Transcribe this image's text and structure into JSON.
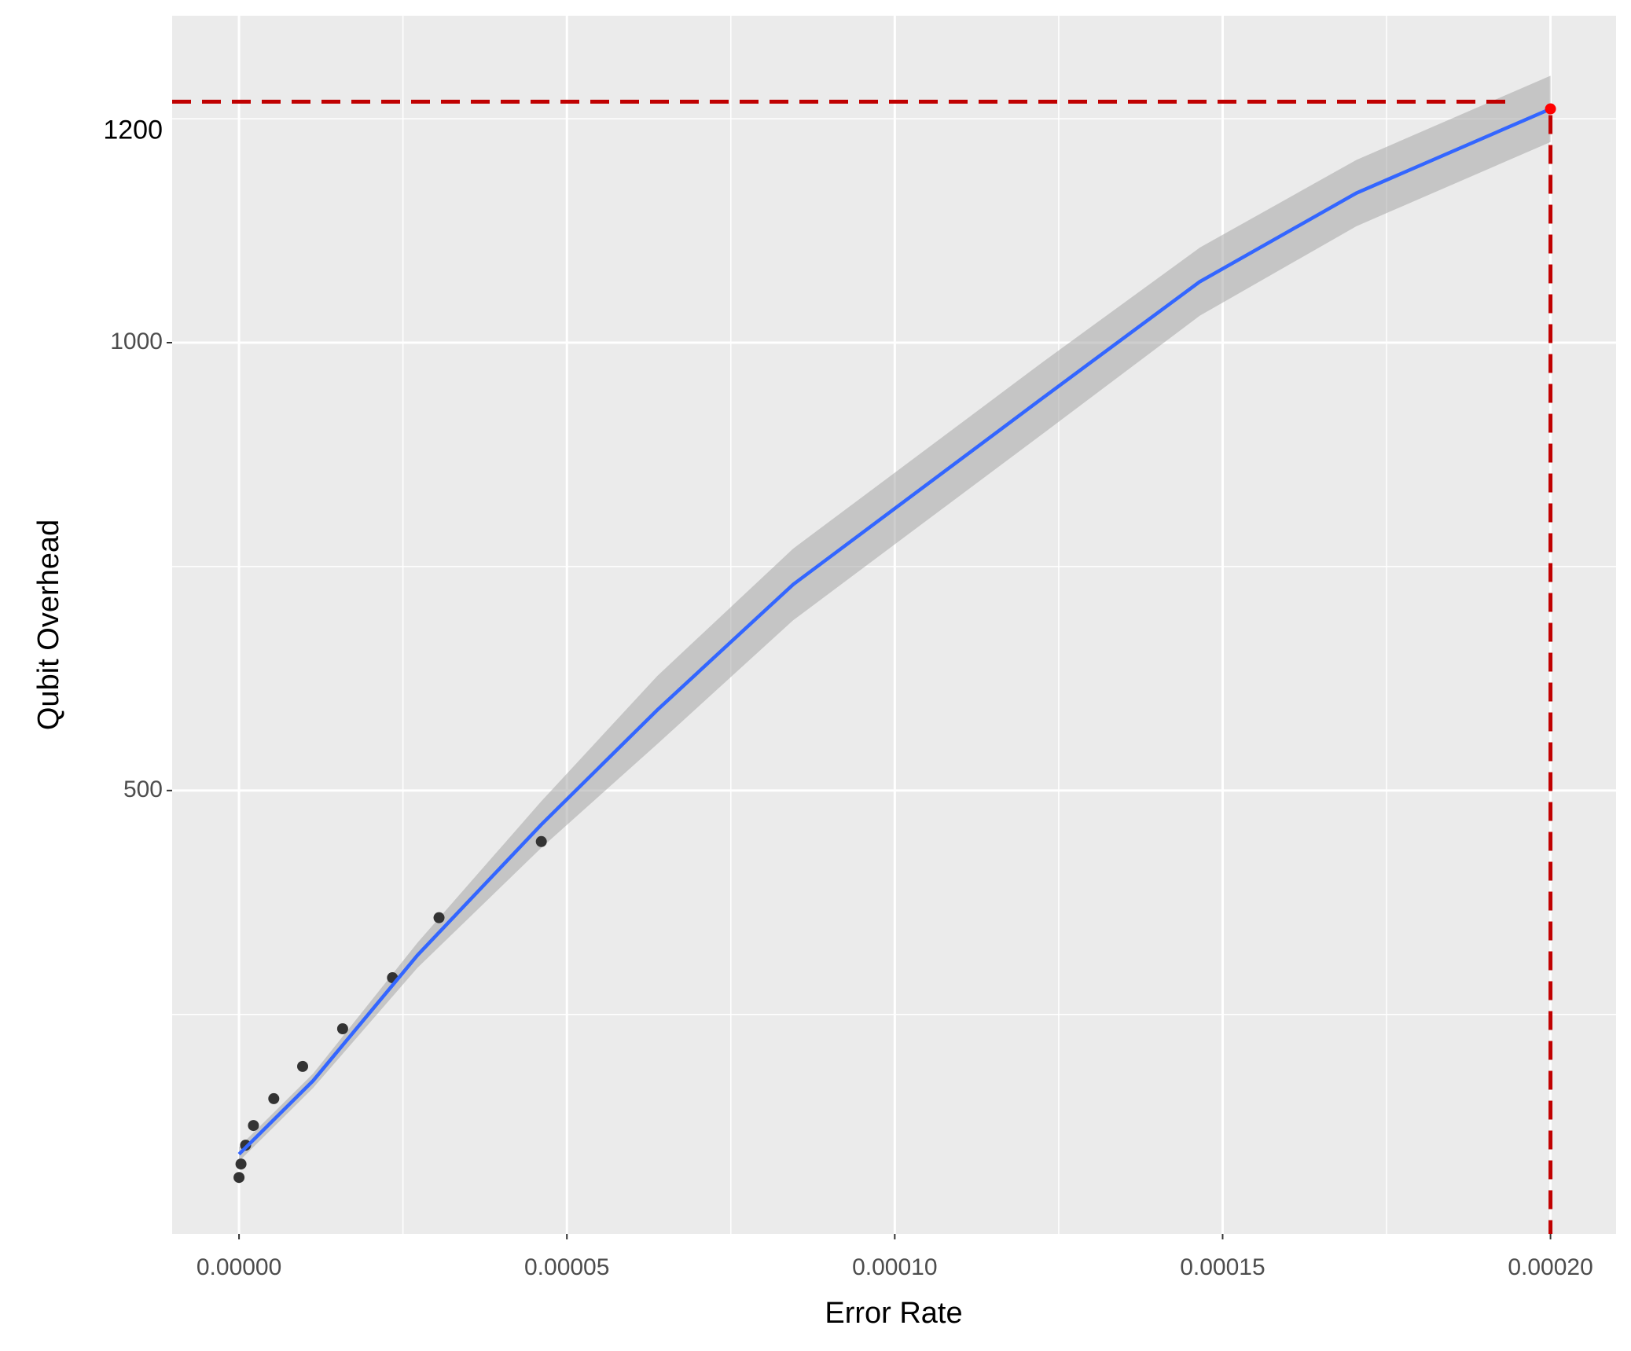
{
  "chart_data": {
    "type": "scatter_fit",
    "x_label": "Error Rate",
    "y_label": "Qubit Overhead",
    "annotation": "1200",
    "xlim": [
      -1.02e-05,
      0.00021
    ],
    "ylim": [
      5,
      1365
    ],
    "xticks": [
      {
        "value": 0,
        "label": "0.00000"
      },
      {
        "value": 5e-05,
        "label": "0.00005"
      },
      {
        "value": 0.0001,
        "label": "0.00010"
      },
      {
        "value": 0.00015,
        "label": "0.00015"
      },
      {
        "value": 0.0002,
        "label": "0.00020"
      }
    ],
    "x_minor_ticks": [
      2.5e-05,
      7.5e-05,
      0.000125,
      0.000175
    ],
    "yticks": [
      500,
      1000
    ],
    "y_minor_ticks": [
      250,
      750,
      1250
    ],
    "grid": true,
    "points": {
      "color": "#333333",
      "x": [
        0,
        3e-07,
        1e-06,
        2.2e-06,
        5.3e-06,
        9.7e-06,
        1.58e-05,
        2.34e-05,
        3.05e-05,
        4.61e-05
      ],
      "y": [
        68,
        83,
        104,
        126,
        156,
        192,
        234,
        291,
        358,
        443
      ]
    },
    "fit": {
      "color": "#3366ff",
      "band_color": "#a6a6a6",
      "x": [
        0,
        1.13e-05,
        2.72e-05,
        4.61e-05,
        6.38e-05,
        8.45e-05,
        0.0001004,
        0.0001227,
        0.0001465,
        0.0001704,
        0.0002
      ],
      "y": [
        94,
        176,
        316,
        462,
        590,
        730,
        817,
        939,
        1068,
        1167,
        1261
      ],
      "lower": [
        86,
        168,
        302,
        436,
        552,
        690,
        777,
        899,
        1030,
        1130,
        1224
      ],
      "upper": [
        102,
        184,
        330,
        488,
        628,
        770,
        857,
        979,
        1106,
        1204,
        1298
      ]
    },
    "highlight": {
      "x": 0.0002,
      "y": 1261,
      "color": "#ff0000"
    },
    "reference": {
      "x": 0.0002,
      "y": 1269,
      "color": "#c00000"
    }
  }
}
